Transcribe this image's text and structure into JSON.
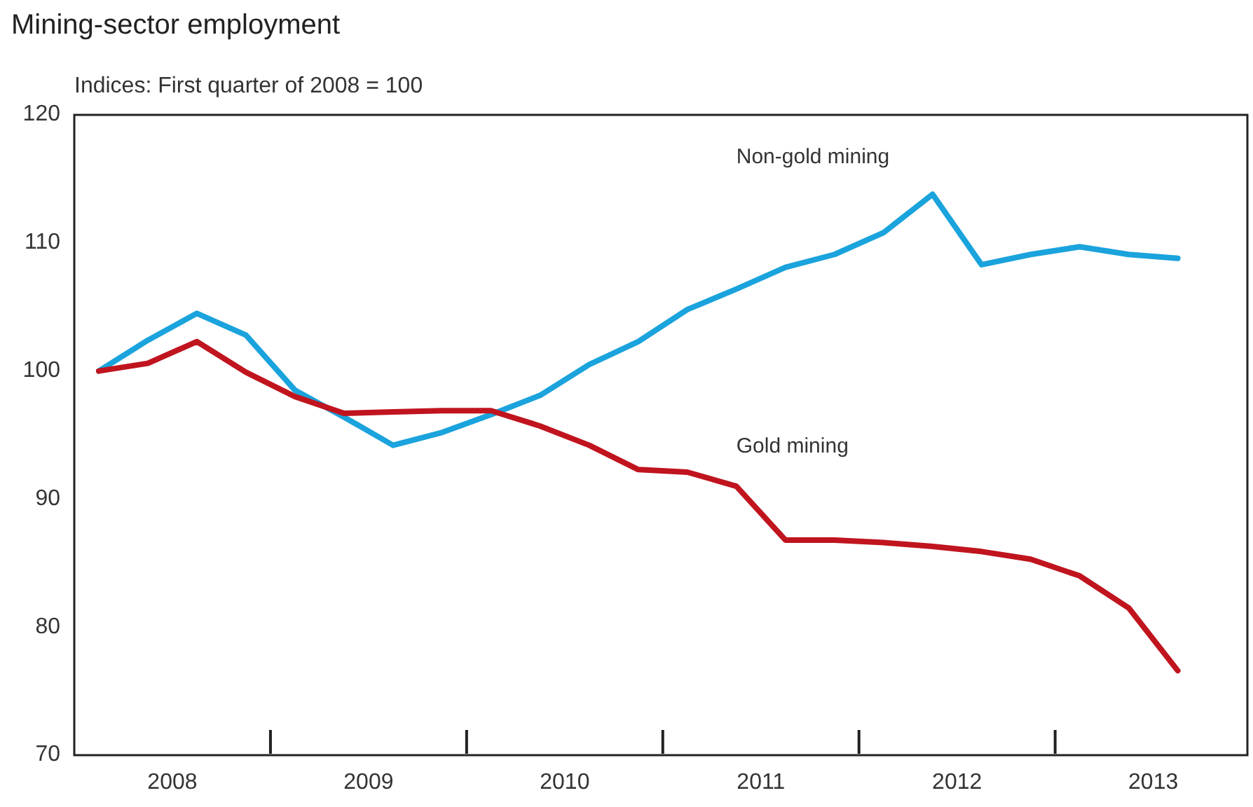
{
  "chart_data": {
    "type": "line",
    "title": "Mining-sector employment",
    "subtitle": "Indices: First quarter of 2008 = 100",
    "x": [
      2008.125,
      2008.375,
      2008.625,
      2008.875,
      2009.125,
      2009.375,
      2009.625,
      2009.875,
      2010.125,
      2010.375,
      2010.625,
      2010.875,
      2011.125,
      2011.375,
      2011.625,
      2011.875,
      2012.125,
      2012.375,
      2012.625,
      2012.875,
      2013.125,
      2013.375,
      2013.625
    ],
    "series": [
      {
        "name": "Non-gold mining",
        "color": "#1aa3dc",
        "values": [
          100,
          102.4,
          104.5,
          102.8,
          98.5,
          96.4,
          94.2,
          95.2,
          96.6,
          98.1,
          100.5,
          102.3,
          104.8,
          106.4,
          108.1,
          109.1,
          110.8,
          113.8,
          108.3,
          109.1,
          109.7,
          109.1,
          108.8
        ]
      },
      {
        "name": "Gold mining",
        "color": "#c0141e",
        "values": [
          100,
          100.6,
          102.3,
          99.9,
          98,
          96.7,
          96.8,
          96.9,
          96.9,
          95.7,
          94.2,
          92.3,
          92.1,
          91,
          86.8,
          86.8,
          86.6,
          86.3,
          85.9,
          85.3,
          84,
          81.5,
          76.6
        ]
      }
    ],
    "xlim": [
      2008,
      2013.98
    ],
    "xticks": [
      {
        "value": 2008.5,
        "label": "2008"
      },
      {
        "value": 2009.5,
        "label": "2009"
      },
      {
        "value": 2010.5,
        "label": "2010"
      },
      {
        "value": 2011.5,
        "label": "2011"
      },
      {
        "value": 2012.5,
        "label": "2012"
      },
      {
        "value": 2013.5,
        "label": "2013"
      }
    ],
    "ylim": [
      70,
      120
    ],
    "yticks": [
      70,
      80,
      90,
      100,
      110,
      120
    ],
    "grid": false,
    "legend": false,
    "marker": "none",
    "line_style": "solid"
  }
}
